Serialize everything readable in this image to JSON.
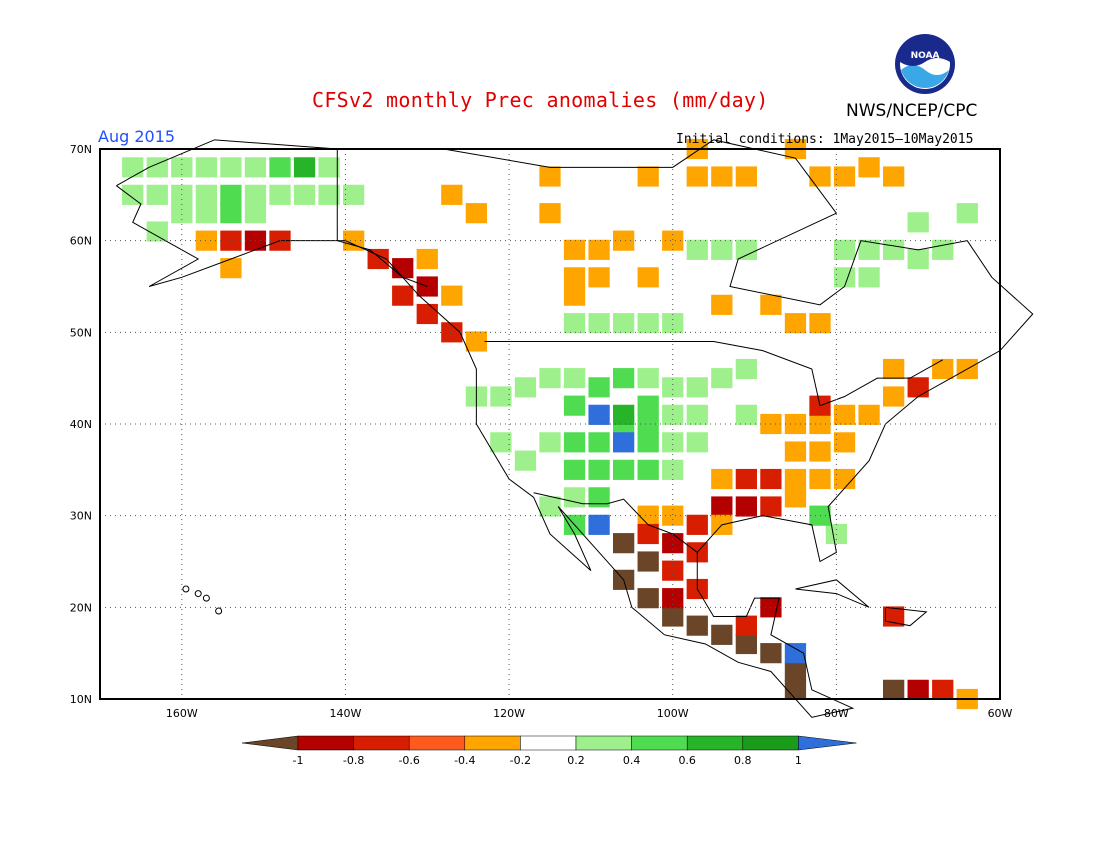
{
  "header": {
    "title": "CFSv2 monthly Prec anomalies (mm/day)",
    "agency": "NWS/NCEP/CPC",
    "period": "Aug 2015",
    "initial_conditions": "Initial conditions: 1May2015–10May2015",
    "logo_text": "NOAA"
  },
  "map": {
    "lat_labels": [
      "70N",
      "60N",
      "50N",
      "40N",
      "30N",
      "20N",
      "10N"
    ],
    "lon_labels": [
      "160W",
      "140W",
      "120W",
      "100W",
      "80W",
      "60W"
    ]
  },
  "legend": {
    "labels": [
      "-1",
      "-0.8",
      "-0.6",
      "-0.4",
      "-0.2",
      "0.2",
      "0.4",
      "0.6",
      "0.8",
      "1"
    ],
    "colors": [
      "#6b4527",
      "#b50000",
      "#d81e00",
      "#ff5a1e",
      "#ffa500",
      "#ffffff",
      "#9ef08c",
      "#50dc50",
      "#28b428",
      "#1a9c1a",
      "#2e6fdb"
    ]
  },
  "colors": {
    "title": "#e00000",
    "period": "#1e50ff"
  }
}
